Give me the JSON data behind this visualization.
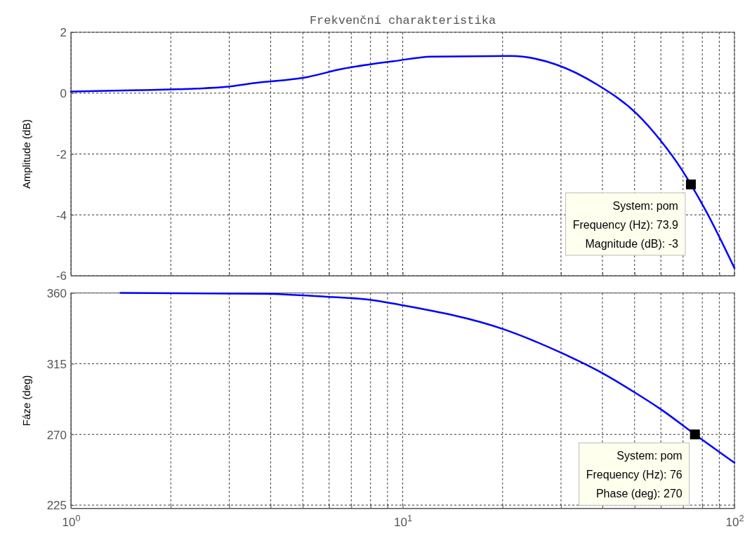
{
  "chart_data": [
    {
      "type": "line",
      "title": "Frekvenční charakteristika",
      "ylabel": "Amplitude (dB)",
      "log": "x",
      "grid": true,
      "tick_labels": "y",
      "xlim": [
        1,
        100
      ],
      "xticks": [
        {
          "value": 1,
          "label": null
        },
        {
          "value": 2,
          "label": null
        },
        {
          "value": 3,
          "label": null
        },
        {
          "value": 4,
          "label": null
        },
        {
          "value": 5,
          "label": null
        },
        {
          "value": 6,
          "label": null
        },
        {
          "value": 7,
          "label": null
        },
        {
          "value": 8,
          "label": null
        },
        {
          "value": 9,
          "label": null
        },
        {
          "value": 10,
          "label": null
        },
        {
          "value": 20,
          "label": null
        },
        {
          "value": 30,
          "label": null
        },
        {
          "value": 40,
          "label": null
        },
        {
          "value": 50,
          "label": null
        },
        {
          "value": 60,
          "label": null
        },
        {
          "value": 70,
          "label": null
        },
        {
          "value": 80,
          "label": null
        },
        {
          "value": 90,
          "label": null
        },
        {
          "value": 100,
          "label": null
        }
      ],
      "ylim": [
        -6,
        2
      ],
      "yticks": [
        -6,
        -4,
        -2,
        0,
        2
      ],
      "series": [
        {
          "color": "#0000ff",
          "x": [
            1,
            1.6,
            2.4,
            2.9,
            3.7,
            5,
            6.6,
            9.4,
            12.2,
            21.1,
            29,
            38.7,
            51,
            59.3,
            69.7,
            73.9,
            82.3,
            100
          ],
          "values": [
            0.05,
            0.1,
            0.15,
            0.2,
            0.35,
            0.5,
            0.8,
            1.05,
            1.2,
            1.22,
            0.94,
            0.27,
            -0.7,
            -1.5,
            -2.55,
            -3,
            -3.9,
            -5.75
          ]
        }
      ],
      "annotations": [
        {
          "text": "System: pom\nFrequency (Hz): 73.9\nMagnitude (dB): -3",
          "x": 73.9,
          "y": -3
        }
      ]
    },
    {
      "type": "line",
      "ylabel": "Fáze (deg)",
      "log": "x",
      "grid": true,
      "xlim": [
        1,
        100
      ],
      "xticks": [
        {
          "value": 1,
          "label": "10$^{0}$"
        },
        {
          "value": 2,
          "label": null
        },
        {
          "value": 3,
          "label": null
        },
        {
          "value": 4,
          "label": null
        },
        {
          "value": 5,
          "label": null
        },
        {
          "value": 6,
          "label": null
        },
        {
          "value": 7,
          "label": null
        },
        {
          "value": 8,
          "label": null
        },
        {
          "value": 9,
          "label": null
        },
        {
          "value": 10,
          "label": "10$^{1}$"
        },
        {
          "value": 20,
          "label": null
        },
        {
          "value": 30,
          "label": null
        },
        {
          "value": 40,
          "label": null
        },
        {
          "value": 50,
          "label": null
        },
        {
          "value": 60,
          "label": null
        },
        {
          "value": 70,
          "label": null
        },
        {
          "value": 80,
          "label": null
        },
        {
          "value": 90,
          "label": null
        },
        {
          "value": 100,
          "label": "10$^{2}$"
        }
      ],
      "ylim": [
        223,
        360
      ],
      "yticks": [
        225,
        270,
        315,
        360
      ],
      "series": [
        {
          "color": "#0000ff",
          "x": [
            1.41,
            3.8,
            5.9,
            7.7,
            10.1,
            20.1,
            30,
            40,
            49.8,
            60,
            76,
            100
          ],
          "values": [
            360,
            359.5,
            357.6,
            356,
            352,
            337,
            322,
            309,
            297,
            286,
            270,
            252
          ]
        }
      ],
      "annotations": [
        {
          "text": "System: pom\nFrequency (Hz): 76\nPhase (deg): 270",
          "x": 76,
          "y": 270
        }
      ]
    }
  ]
}
